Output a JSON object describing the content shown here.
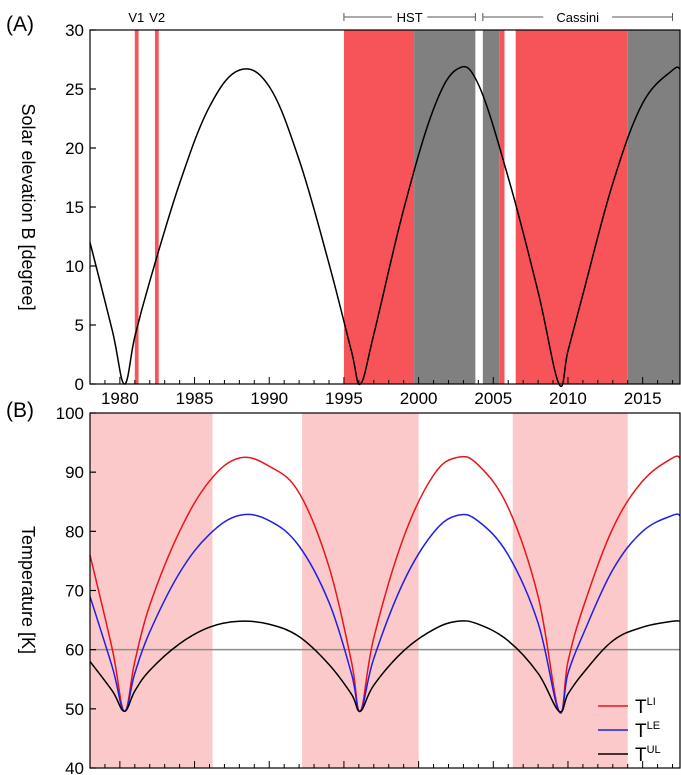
{
  "panels": [
    "(A)",
    "(B)"
  ],
  "chart_data": [
    {
      "type": "line",
      "panel_label": "(A)",
      "ylabel": "Solar elevation B [degree]",
      "xlim": [
        1978,
        2017.5
      ],
      "ylim": [
        0,
        30
      ],
      "xticks": [
        1980,
        1985,
        1990,
        1995,
        2000,
        2005,
        2010,
        2015
      ],
      "yticks": [
        0,
        5,
        10,
        15,
        20,
        25,
        30
      ],
      "series": [
        {
          "color": "#000000",
          "x": [
            1978,
            1979.5,
            1980.3,
            1981,
            1982,
            1984,
            1986,
            1988,
            1990,
            1992,
            1994,
            1995.5,
            1996.1,
            1997,
            1999,
            2001,
            2002.6,
            2004,
            2006,
            2008,
            2009.4,
            2010,
            2011,
            2013,
            2015,
            2017,
            2017.5
          ],
          "y": [
            12,
            4.5,
            0,
            4,
            8.7,
            17,
            23.5,
            26.6,
            25.2,
            19,
            10.2,
            2.8,
            0,
            4.2,
            14.8,
            23.3,
            26.7,
            25.4,
            17.5,
            7.8,
            0,
            2.8,
            7.6,
            17,
            23.8,
            26.6,
            26.7
          ]
        }
      ],
      "shaded_spans": [
        {
          "x0": 1981.0,
          "x1": 1981.25,
          "color": "#f7545a"
        },
        {
          "x0": 1982.35,
          "x1": 1982.6,
          "color": "#f7545a"
        },
        {
          "x0": 1995.0,
          "x1": 1999.7,
          "color": "#f7545a"
        },
        {
          "x0": 1999.7,
          "x1": 2003.8,
          "color": "#808080"
        },
        {
          "x0": 2004.3,
          "x1": 2005.4,
          "color": "#808080"
        },
        {
          "x0": 2005.4,
          "x1": 2005.75,
          "color": "#f7545a"
        },
        {
          "x0": 2006.5,
          "x1": 2014.0,
          "color": "#f7545a"
        },
        {
          "x0": 2014.0,
          "x1": 2017.5,
          "color": "#808080"
        }
      ],
      "annotations": [
        {
          "text": "V1",
          "x": 1981.1
        },
        {
          "text": "V2",
          "x": 1982.5
        }
      ],
      "brackets": [
        {
          "text": "HST",
          "x0": 1995.0,
          "x1": 2003.8
        },
        {
          "text": "Cassini",
          "x0": 2004.3,
          "x1": 2017.0
        }
      ]
    },
    {
      "type": "line",
      "panel_label": "(B)",
      "ylabel": "Temperature [K]",
      "xlim": [
        1978,
        2017.5
      ],
      "ylim": [
        40,
        100
      ],
      "yticks": [
        40,
        50,
        60,
        70,
        80,
        90,
        100
      ],
      "shaded_spans": [
        {
          "x0": 1978,
          "x1": 1986.2,
          "color": "#fcc9ca"
        },
        {
          "x0": 1992.2,
          "x1": 2000.0,
          "color": "#fcc9ca"
        },
        {
          "x0": 2006.3,
          "x1": 2014.0,
          "color": "#fcc9ca"
        }
      ],
      "reference_line": {
        "y": 60,
        "color": "#8c8c8c"
      },
      "series": [
        {
          "name": "T^LI",
          "label_main": "T",
          "label_sup": "LI",
          "color": "#e8151b",
          "x": [
            1978,
            1979.5,
            1980.3,
            1981,
            1982,
            1984,
            1986,
            1988,
            1990,
            1992,
            1994,
            1995.5,
            1996.1,
            1997,
            1999,
            2001,
            2002.6,
            2004,
            2006,
            2008,
            2009.4,
            2010,
            2011,
            2013,
            2015,
            2017,
            2017.5
          ],
          "y": [
            76,
            60,
            49.6,
            58,
            67.5,
            80,
            88.5,
            92.4,
            91,
            86.5,
            74,
            58,
            49.6,
            62,
            79,
            89.5,
            92.5,
            91.2,
            84,
            69,
            49.6,
            58,
            67,
            80.5,
            88.5,
            92.4,
            92.4
          ]
        },
        {
          "name": "T^LE",
          "label_main": "T",
          "label_sup": "LE",
          "color": "#1f1fe6",
          "x": [
            1978,
            1979.5,
            1980.3,
            1981,
            1982,
            1984,
            1986,
            1988,
            1990,
            1992,
            1994,
            1995.5,
            1996.1,
            1997,
            1999,
            2001,
            2002.6,
            2004,
            2006,
            2008,
            2009.4,
            2010,
            2011,
            2013,
            2015,
            2017,
            2017.5
          ],
          "y": [
            69,
            57,
            49.6,
            56,
            63,
            73,
            79.5,
            82.7,
            81.8,
            77.5,
            68,
            56,
            49.6,
            58.5,
            71.5,
            79.8,
            82.7,
            81.7,
            76,
            64.5,
            49.6,
            56,
            62.5,
            73.5,
            80,
            82.7,
            82.7
          ]
        },
        {
          "name": "T^UL",
          "label_main": "T",
          "label_sup": "UL",
          "color": "#000000",
          "x": [
            1978,
            1979.5,
            1980.3,
            1981,
            1982,
            1984,
            1986,
            1988,
            1990,
            1992,
            1994,
            1995.5,
            1996.1,
            1997,
            1999,
            2001,
            2002.6,
            2004,
            2006,
            2008,
            2009.4,
            2010,
            2011,
            2013,
            2015,
            2017,
            2017.5
          ],
          "y": [
            58,
            53,
            49.6,
            53,
            56.5,
            61,
            63.8,
            64.8,
            64.3,
            62.2,
            57.5,
            52.5,
            49.6,
            54,
            59.8,
            63.4,
            64.8,
            64.3,
            61.5,
            56,
            49.6,
            52.5,
            56,
            61.5,
            63.8,
            64.8,
            64.8
          ]
        }
      ],
      "legend": {
        "position": "bottom-right"
      }
    }
  ]
}
